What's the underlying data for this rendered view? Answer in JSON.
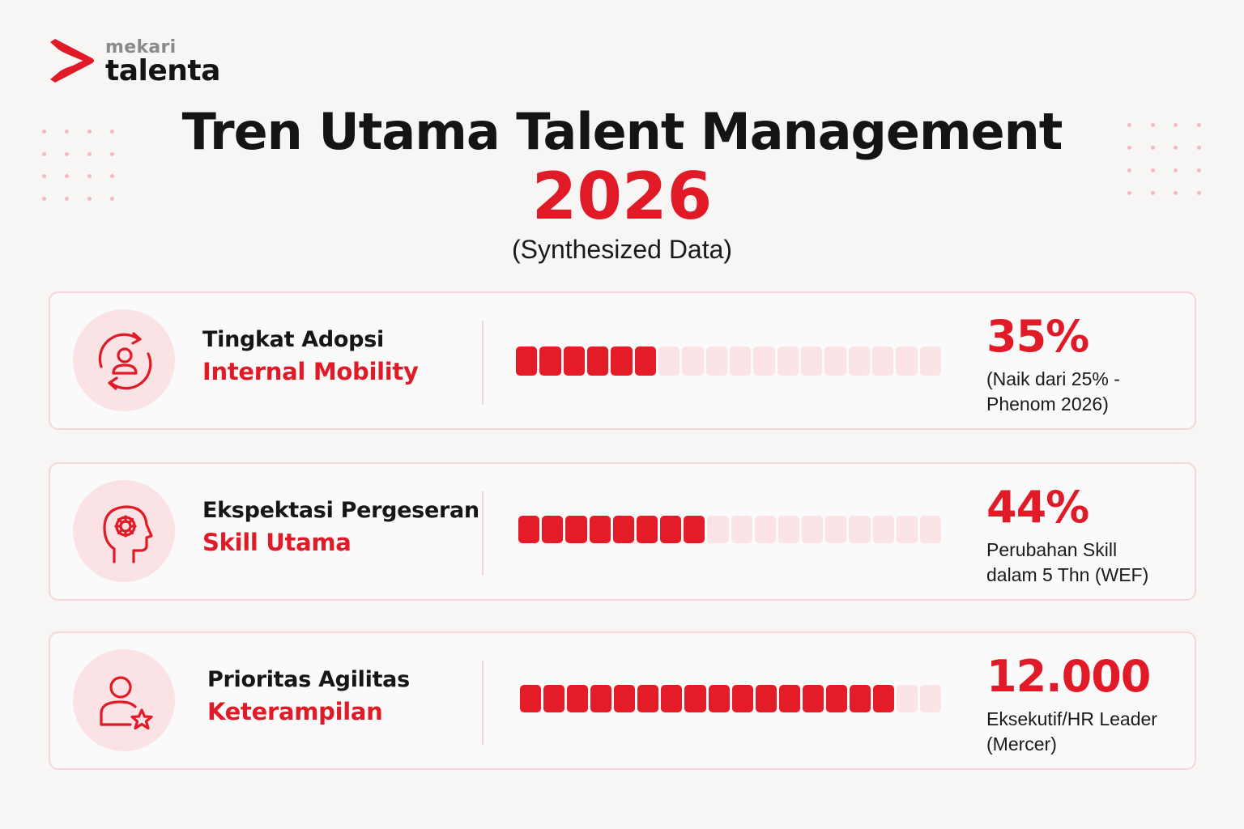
{
  "brand": {
    "small": "mekari",
    "big": "talenta",
    "color": "#e01a26"
  },
  "header": {
    "title": "Tren Utama Talent Management",
    "year": "2026",
    "subtitle": "(Synthesized Data)"
  },
  "cards": [
    {
      "icon": "person-cycle-icon",
      "label_top": "Tingkat Adopsi",
      "label_bottom": "Internal Mobility",
      "value": "35%",
      "note_line1": "(Naik dari 25% -",
      "note_line2": "Phenom 2026)",
      "bar_fill": 0.35,
      "segments": 18
    },
    {
      "icon": "head-gear-icon",
      "label_top": "Ekspektasi Pergeseran",
      "label_bottom": "Skill Utama",
      "value": "44%",
      "note_line1": "Perubahan Skill",
      "note_line2": "dalam 5 Thn (WEF)",
      "bar_fill": 0.44,
      "segments": 18
    },
    {
      "icon": "person-star-icon",
      "label_top": "Prioritas Agilitas",
      "label_bottom": "Keterampilan",
      "value": "12.000",
      "note_line1": "Eksekutif/HR Leader",
      "note_line2": "(Mercer)",
      "bar_fill": 0.89,
      "segments": 18
    }
  ]
}
